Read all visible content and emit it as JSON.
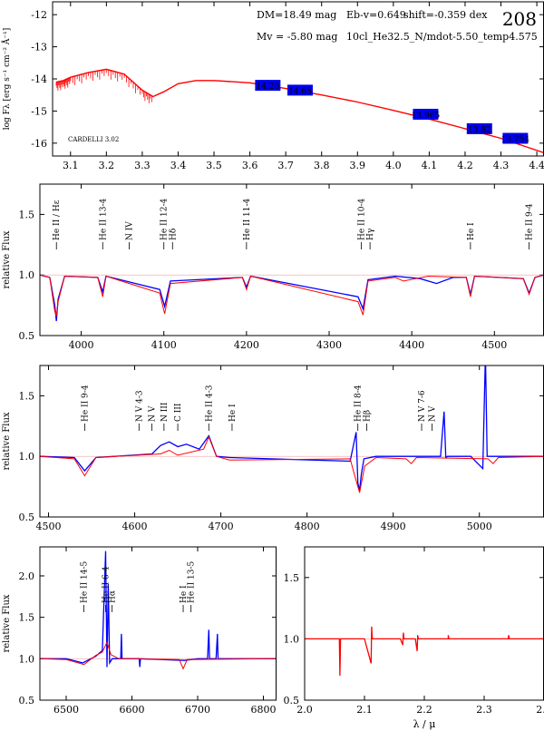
{
  "chart_data": [
    {
      "type": "line",
      "panel": "sed",
      "plot_number": "208",
      "ylabel": "log Fλ [erg s⁻¹ cm⁻² Å⁻¹]",
      "xlim": [
        3.05,
        4.42
      ],
      "ylim": [
        -16.4,
        -11.6
      ],
      "xticks": [
        "3.1",
        "3.2",
        "3.3",
        "3.4",
        "3.5",
        "3.6",
        "3.7",
        "3.8",
        "3.9",
        "4.0",
        "4.1",
        "4.2",
        "4.3",
        "4.4"
      ],
      "yticks": [
        "-12",
        "-13",
        "-14",
        "-15",
        "-16"
      ],
      "annotations": {
        "dm": "DM=18.49 mag",
        "mv": "Mv = -5.80 mag",
        "ebv": "Eb-v=0.649",
        "shift": "shift=-0.359 dex",
        "model": "10cl_He32.5_N/mdot-5.50_temp4.575",
        "reddening": "CARDELLI 3.02"
      },
      "model_curve": {
        "x": [
          3.06,
          3.08,
          3.1,
          3.15,
          3.2,
          3.25,
          3.3,
          3.33,
          3.36,
          3.4,
          3.45,
          3.5,
          3.6,
          3.7,
          3.8,
          3.9,
          4.0,
          4.1,
          4.2,
          4.3,
          4.42
        ],
        "y": [
          -14.1,
          -14.05,
          -13.95,
          -13.8,
          -13.7,
          -13.85,
          -14.35,
          -14.55,
          -14.4,
          -14.15,
          -14.05,
          -14.05,
          -14.12,
          -14.3,
          -14.5,
          -14.72,
          -14.98,
          -15.25,
          -15.55,
          -15.85,
          -16.3
        ]
      },
      "photometry": [
        {
          "x": 3.65,
          "y": -14.2,
          "label": "14.28"
        },
        {
          "x": 3.74,
          "y": -14.35,
          "label": "14.65"
        },
        {
          "x": 4.09,
          "y": -15.1,
          "label": "13.965"
        },
        {
          "x": 4.24,
          "y": -15.55,
          "label": "13.82"
        },
        {
          "x": 4.34,
          "y": -15.85,
          "label": "13.754"
        }
      ]
    },
    {
      "type": "line",
      "panel": "blue-spectrum",
      "ylabel": "relative Flux",
      "xlim": [
        3950,
        4560
      ],
      "ylim": [
        0.5,
        1.75
      ],
      "xticks": [
        "4000",
        "4100",
        "4200",
        "4300",
        "4400",
        "4500"
      ],
      "yticks": [
        "0.5",
        "1.0",
        "1.5"
      ],
      "line_ids": [
        {
          "x": 3970,
          "label": "He II / Hε"
        },
        {
          "x": 4026,
          "label": "He II 13-4"
        },
        {
          "x": 4058,
          "label": "N IV"
        },
        {
          "x": 4100,
          "label": "He II 12-4"
        },
        {
          "x": 4105,
          "label": "Hδ"
        },
        {
          "x": 4200,
          "label": "He II 11-4"
        },
        {
          "x": 4339,
          "label": "He II 10-4"
        },
        {
          "x": 4344,
          "label": "Hγ"
        },
        {
          "x": 4471,
          "label": "He I"
        },
        {
          "x": 4542,
          "label": "He II 9-4"
        }
      ],
      "series": [
        {
          "color": "#0000ff",
          "x": [
            3950,
            3962,
            3968,
            3970,
            3972,
            3980,
            4020,
            4026,
            4030,
            4095,
            4101,
            4108,
            4195,
            4200,
            4205,
            4335,
            4341,
            4347,
            4380,
            4410,
            4430,
            4450,
            4466,
            4471,
            4476,
            4535,
            4542,
            4549,
            4560
          ],
          "y": [
            1.0,
            0.98,
            0.75,
            0.62,
            0.8,
            0.99,
            0.98,
            0.86,
            0.99,
            0.88,
            0.74,
            0.95,
            0.98,
            0.9,
            0.99,
            0.82,
            0.72,
            0.96,
            0.99,
            0.97,
            0.93,
            0.98,
            0.98,
            0.84,
            0.99,
            0.97,
            0.85,
            0.98,
            1.0
          ]
        },
        {
          "color": "#ff0000",
          "x": [
            3950,
            3962,
            3968,
            3970,
            3972,
            3980,
            4020,
            4026,
            4030,
            4095,
            4101,
            4108,
            4195,
            4200,
            4205,
            4335,
            4341,
            4347,
            4380,
            4390,
            4420,
            4466,
            4471,
            4476,
            4535,
            4542,
            4549,
            4560
          ],
          "y": [
            1.0,
            0.98,
            0.7,
            0.66,
            0.78,
            0.99,
            0.98,
            0.82,
            0.99,
            0.85,
            0.68,
            0.93,
            0.98,
            0.88,
            0.99,
            0.78,
            0.67,
            0.95,
            0.98,
            0.95,
            0.99,
            0.98,
            0.82,
            0.99,
            0.97,
            0.84,
            0.98,
            1.0
          ]
        }
      ]
    },
    {
      "type": "line",
      "panel": "mid-spectrum",
      "ylabel": "relative Flux",
      "xlim": [
        4490,
        5075
      ],
      "ylim": [
        0.5,
        1.75
      ],
      "xticks": [
        "4500",
        "4600",
        "4700",
        "4800",
        "4900",
        "5000"
      ],
      "yticks": [
        "0.5",
        "1.0",
        "1.5"
      ],
      "line_ids": [
        {
          "x": 4542,
          "label": "He II 9-4"
        },
        {
          "x": 4605,
          "label": "N V 4-3"
        },
        {
          "x": 4620,
          "label": "N V"
        },
        {
          "x": 4634,
          "label": "N III"
        },
        {
          "x": 4650,
          "label": "C III"
        },
        {
          "x": 4686,
          "label": "He II 4-3"
        },
        {
          "x": 4713,
          "label": "He I"
        },
        {
          "x": 4859,
          "label": "He II 8-4"
        },
        {
          "x": 4864,
          "label": "Hβ"
        },
        {
          "x": 4933,
          "label": "N V 7-6"
        },
        {
          "x": 4945,
          "label": "N V"
        }
      ],
      "series": [
        {
          "color": "#0000ff",
          "x": [
            4490,
            4530,
            4542,
            4555,
            4620,
            4630,
            4640,
            4650,
            4660,
            4675,
            4686,
            4695,
            4710,
            4850,
            4857,
            4859,
            4861,
            4863,
            4866,
            4880,
            4955,
            4959,
            4961,
            4963,
            4990,
            5004,
            5007,
            5009,
            5012,
            5075
          ],
          "y": [
            1.0,
            0.99,
            0.88,
            0.99,
            1.02,
            1.09,
            1.12,
            1.08,
            1.1,
            1.06,
            1.17,
            1.0,
            0.99,
            0.96,
            1.2,
            0.78,
            0.72,
            0.85,
            0.98,
            1.0,
            1.0,
            1.37,
            0.99,
            1.0,
            1.0,
            0.9,
            1.85,
            1.0,
            1.0,
            1.0
          ]
        },
        {
          "color": "#ff0000",
          "x": [
            4490,
            4530,
            4542,
            4555,
            4630,
            4640,
            4650,
            4680,
            4686,
            4695,
            4710,
            4850,
            4855,
            4861,
            4867,
            4880,
            4915,
            4921,
            4927,
            5010,
            5016,
            5022,
            5075
          ],
          "y": [
            1.0,
            0.98,
            0.84,
            0.99,
            1.02,
            1.05,
            1.01,
            1.06,
            1.16,
            1.0,
            0.97,
            0.98,
            0.85,
            0.7,
            0.92,
            0.99,
            0.98,
            0.94,
            0.99,
            0.98,
            0.94,
            0.99,
            1.0
          ]
        }
      ]
    },
    {
      "type": "line",
      "panel": "halpha-spectrum",
      "ylabel": "relative Flux",
      "xlim": [
        6460,
        6820
      ],
      "ylim": [
        0.5,
        2.35
      ],
      "xticks": [
        "6500",
        "6600",
        "6700",
        "6800"
      ],
      "yticks": [
        "0.5",
        "1.0",
        "1.5",
        "2.0"
      ],
      "line_ids": [
        {
          "x": 6527,
          "label": "He II 14-5"
        },
        {
          "x": 6560,
          "label": "He II 6-4"
        },
        {
          "x": 6563,
          "label": "Hα"
        },
        {
          "x": 6678,
          "label": "He I"
        },
        {
          "x": 6683,
          "label": "He II 13-5"
        }
      ],
      "series": [
        {
          "color": "#0000ff",
          "x": [
            6460,
            6500,
            6525,
            6545,
            6555,
            6560,
            6562,
            6564,
            6566,
            6570,
            6583,
            6584,
            6585,
            6600,
            6611,
            6612,
            6613,
            6680,
            6700,
            6715,
            6717,
            6718,
            6719,
            6728,
            6730,
            6731,
            6732,
            6760,
            6820
          ],
          "y": [
            1.0,
            1.0,
            0.95,
            1.03,
            1.1,
            2.3,
            0.9,
            1.9,
            0.95,
            1.0,
            1.0,
            1.3,
            1.0,
            1.0,
            1.0,
            0.9,
            1.0,
            0.98,
            1.0,
            1.0,
            1.35,
            1.0,
            1.0,
            1.0,
            1.3,
            1.0,
            1.0,
            1.0,
            1.0
          ]
        },
        {
          "color": "#ff0000",
          "x": [
            6460,
            6500,
            6527,
            6545,
            6555,
            6562,
            6568,
            6580,
            6672,
            6678,
            6684,
            6820
          ],
          "y": [
            1.0,
            0.99,
            0.93,
            1.04,
            1.08,
            1.2,
            1.05,
            1.0,
            0.99,
            0.88,
            0.99,
            1.0
          ]
        }
      ]
    },
    {
      "type": "line",
      "panel": "infrared-spectrum",
      "xlabel": "λ / μ",
      "xlim": [
        2.0,
        2.4
      ],
      "ylim": [
        0.5,
        1.75
      ],
      "xticks": [
        "2.0",
        "2.1",
        "2.2",
        "2.3",
        "2.4"
      ],
      "yticks": [
        "0.5",
        "1.0",
        "1.5"
      ],
      "series": [
        {
          "color": "#ff0000",
          "x": [
            2.0,
            2.058,
            2.059,
            2.06,
            2.061,
            2.1,
            2.111,
            2.112,
            2.113,
            2.114,
            2.16,
            2.164,
            2.165,
            2.166,
            2.185,
            2.188,
            2.189,
            2.19,
            2.24,
            2.24,
            2.241,
            2.34,
            2.341,
            2.342,
            2.4
          ],
          "y": [
            1.0,
            1.0,
            0.7,
            1.0,
            1.0,
            1.0,
            0.8,
            1.1,
            1.0,
            1.0,
            1.0,
            0.95,
            1.05,
            1.0,
            1.0,
            0.9,
            1.03,
            1.0,
            1.0,
            1.03,
            1.0,
            1.0,
            1.03,
            1.0,
            1.0
          ]
        }
      ]
    }
  ]
}
